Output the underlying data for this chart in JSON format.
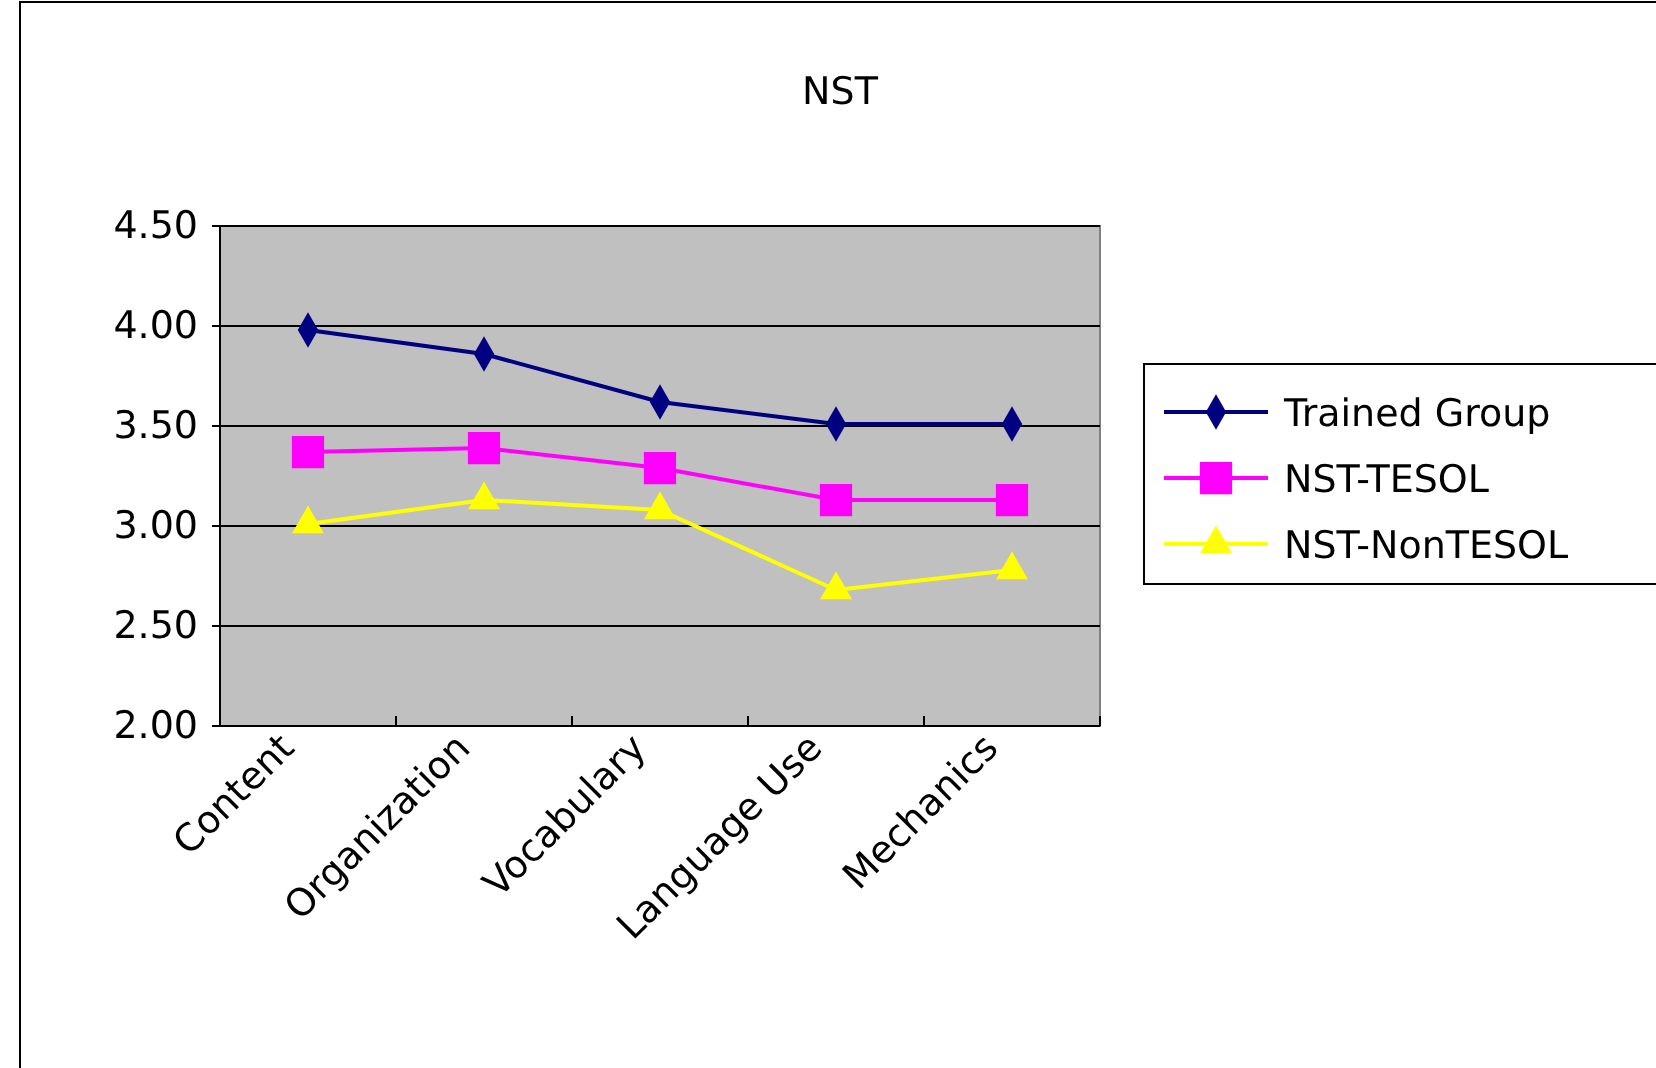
{
  "chart_data": {
    "type": "line",
    "title": "NST",
    "categories": [
      "Content",
      "Organization",
      "Vocabulary",
      "Language Use",
      "Mechanics"
    ],
    "series": [
      {
        "name": "Trained Group",
        "color": "#000080",
        "marker": "diamond",
        "values": [
          3.98,
          3.86,
          3.62,
          3.51,
          3.51
        ]
      },
      {
        "name": "NST-TESOL",
        "color": "#ff00ff",
        "marker": "square",
        "values": [
          3.37,
          3.39,
          3.29,
          3.13,
          3.13
        ]
      },
      {
        "name": "NST-NonTESOL",
        "color": "#ffff00",
        "marker": "triangle",
        "values": [
          3.01,
          3.13,
          3.08,
          2.68,
          2.78
        ]
      }
    ],
    "ylim": [
      2.0,
      4.5
    ],
    "yticks": [
      {
        "value": 2,
        "label": "2.00"
      },
      {
        "value": 2.5,
        "label": "2.50"
      },
      {
        "value": 3,
        "label": "3.00"
      },
      {
        "value": 3.5,
        "label": "3.50"
      },
      {
        "value": 4,
        "label": "4.00"
      },
      {
        "value": 4.5,
        "label": "4.50"
      }
    ],
    "grid": "y",
    "legend": "right"
  }
}
